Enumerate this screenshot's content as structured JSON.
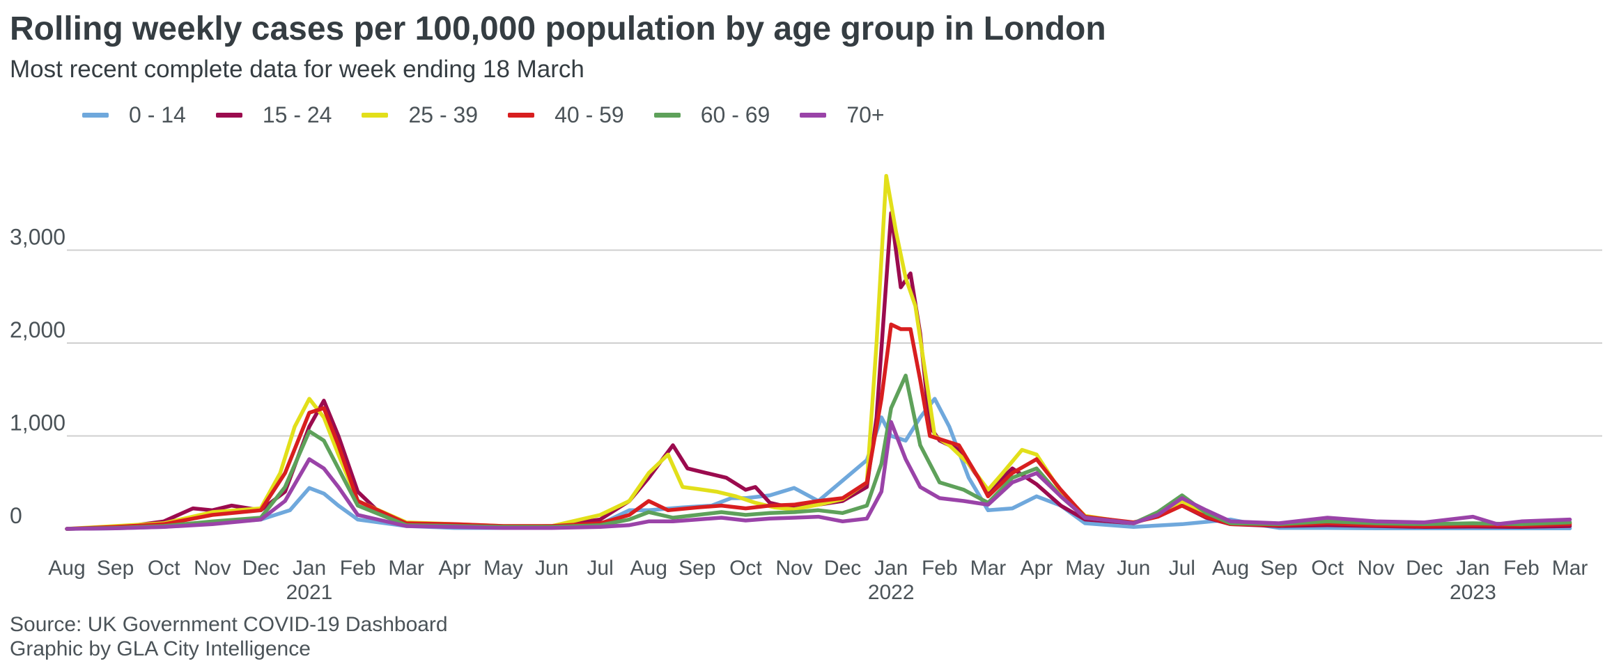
{
  "chart_data": {
    "type": "line",
    "title": "Rolling weekly cases per 100,000 population by age group in London",
    "subtitle": "Most recent complete data for week ending 18 March",
    "xlabel": "",
    "ylabel": "",
    "ylim": [
      0,
      4200
    ],
    "yticks": [
      0,
      1000,
      2000,
      3000
    ],
    "ytick_labels": [
      "0",
      "1,000",
      "2,000",
      "3,000"
    ],
    "grid": "horizontal",
    "legend_position": "top-left",
    "x_range": [
      2020.5,
      2023.2
    ],
    "x_unit": "months starting August 2020",
    "month_ticks": [
      "Aug",
      "Sep",
      "Oct",
      "Nov",
      "Dec",
      "Jan",
      "Feb",
      "Mar",
      "Apr",
      "May",
      "Jun",
      "Jul",
      "Aug",
      "Sep",
      "Oct",
      "Nov",
      "Dec",
      "Jan",
      "Feb",
      "Mar",
      "Apr",
      "May",
      "Jun",
      "Jul",
      "Aug",
      "Sep",
      "Oct",
      "Nov",
      "Dec",
      "Jan",
      "Feb",
      "Mar"
    ],
    "year_labels": [
      {
        "label": "2021",
        "month_index": 5
      },
      {
        "label": "2022",
        "month_index": 17
      },
      {
        "label": "2023",
        "month_index": 29
      }
    ],
    "series": [
      {
        "name": "0 - 14",
        "color": "#6fa8dc",
        "points": [
          [
            0,
            0
          ],
          [
            1,
            5
          ],
          [
            2,
            20
          ],
          [
            3,
            60
          ],
          [
            4,
            100
          ],
          [
            4.6,
            200
          ],
          [
            5,
            440
          ],
          [
            5.3,
            380
          ],
          [
            5.6,
            250
          ],
          [
            6,
            100
          ],
          [
            7,
            30
          ],
          [
            8,
            10
          ],
          [
            9,
            10
          ],
          [
            10,
            15
          ],
          [
            11,
            50
          ],
          [
            11.6,
            200
          ],
          [
            12,
            200
          ],
          [
            12.7,
            230
          ],
          [
            13.3,
            250
          ],
          [
            13.7,
            330
          ],
          [
            14,
            330
          ],
          [
            14.5,
            360
          ],
          [
            15,
            440
          ],
          [
            15.5,
            300
          ],
          [
            16,
            520
          ],
          [
            16.5,
            740
          ],
          [
            16.8,
            1200
          ],
          [
            17,
            1000
          ],
          [
            17.3,
            950
          ],
          [
            17.6,
            1200
          ],
          [
            17.9,
            1400
          ],
          [
            18.2,
            1100
          ],
          [
            18.6,
            550
          ],
          [
            19,
            200
          ],
          [
            19.5,
            220
          ],
          [
            20,
            350
          ],
          [
            20.5,
            250
          ],
          [
            21,
            60
          ],
          [
            22,
            20
          ],
          [
            23,
            50
          ],
          [
            24,
            100
          ],
          [
            24.5,
            50
          ],
          [
            25,
            10
          ],
          [
            26,
            10
          ],
          [
            27,
            5
          ],
          [
            28,
            5
          ],
          [
            29,
            5
          ],
          [
            30,
            5
          ],
          [
            31,
            5
          ]
        ]
      },
      {
        "name": "15 - 24",
        "color": "#9b0b4e",
        "points": [
          [
            0,
            0
          ],
          [
            1,
            10
          ],
          [
            2,
            80
          ],
          [
            2.6,
            220
          ],
          [
            3,
            200
          ],
          [
            3.4,
            250
          ],
          [
            4,
            200
          ],
          [
            4.5,
            400
          ],
          [
            5,
            1100
          ],
          [
            5.3,
            1380
          ],
          [
            5.6,
            1000
          ],
          [
            6,
            400
          ],
          [
            6.5,
            150
          ],
          [
            7,
            50
          ],
          [
            8,
            30
          ],
          [
            9,
            20
          ],
          [
            10,
            30
          ],
          [
            11,
            100
          ],
          [
            11.6,
            300
          ],
          [
            12,
            550
          ],
          [
            12.5,
            900
          ],
          [
            12.8,
            650
          ],
          [
            13.2,
            600
          ],
          [
            13.6,
            550
          ],
          [
            14,
            420
          ],
          [
            14.2,
            450
          ],
          [
            14.5,
            280
          ],
          [
            15,
            220
          ],
          [
            15.5,
            260
          ],
          [
            16,
            300
          ],
          [
            16.5,
            450
          ],
          [
            16.7,
            1200
          ],
          [
            17,
            3400
          ],
          [
            17.2,
            2600
          ],
          [
            17.4,
            2750
          ],
          [
            17.6,
            2100
          ],
          [
            17.8,
            1100
          ],
          [
            18,
            950
          ],
          [
            18.4,
            850
          ],
          [
            18.8,
            550
          ],
          [
            19,
            400
          ],
          [
            19.5,
            650
          ],
          [
            20,
            480
          ],
          [
            20.5,
            250
          ],
          [
            21,
            100
          ],
          [
            22,
            60
          ],
          [
            22.5,
            150
          ],
          [
            23,
            250
          ],
          [
            23.5,
            120
          ],
          [
            24,
            50
          ],
          [
            25,
            30
          ],
          [
            26,
            40
          ],
          [
            27,
            30
          ],
          [
            28,
            20
          ],
          [
            29,
            25
          ],
          [
            30,
            20
          ],
          [
            31,
            30
          ]
        ]
      },
      {
        "name": "25 - 39",
        "color": "#e2df1a",
        "points": [
          [
            0,
            0
          ],
          [
            1,
            30
          ],
          [
            2,
            60
          ],
          [
            3,
            180
          ],
          [
            4,
            220
          ],
          [
            4.4,
            600
          ],
          [
            4.7,
            1100
          ],
          [
            5,
            1400
          ],
          [
            5.3,
            1200
          ],
          [
            5.6,
            800
          ],
          [
            6,
            300
          ],
          [
            7,
            70
          ],
          [
            8,
            50
          ],
          [
            9,
            30
          ],
          [
            10,
            30
          ],
          [
            11,
            150
          ],
          [
            11.6,
            300
          ],
          [
            12,
            600
          ],
          [
            12.4,
            800
          ],
          [
            12.7,
            450
          ],
          [
            13,
            430
          ],
          [
            13.4,
            400
          ],
          [
            13.8,
            350
          ],
          [
            14.2,
            280
          ],
          [
            14.6,
            230
          ],
          [
            15,
            210
          ],
          [
            15.5,
            260
          ],
          [
            16,
            320
          ],
          [
            16.5,
            500
          ],
          [
            16.7,
            2000
          ],
          [
            16.9,
            3800
          ],
          [
            17.1,
            3200
          ],
          [
            17.3,
            2700
          ],
          [
            17.5,
            2400
          ],
          [
            17.7,
            1700
          ],
          [
            17.9,
            1000
          ],
          [
            18.2,
            900
          ],
          [
            18.6,
            700
          ],
          [
            19,
            420
          ],
          [
            19.3,
            600
          ],
          [
            19.7,
            850
          ],
          [
            20,
            800
          ],
          [
            20.5,
            400
          ],
          [
            21,
            140
          ],
          [
            22,
            60
          ],
          [
            22.5,
            150
          ],
          [
            23,
            300
          ],
          [
            23.5,
            150
          ],
          [
            24,
            60
          ],
          [
            25,
            40
          ],
          [
            26,
            70
          ],
          [
            27,
            50
          ],
          [
            28,
            40
          ],
          [
            29,
            50
          ],
          [
            30,
            40
          ],
          [
            31,
            60
          ]
        ]
      },
      {
        "name": "40 - 59",
        "color": "#d81e1f",
        "points": [
          [
            0,
            0
          ],
          [
            1,
            20
          ],
          [
            2,
            50
          ],
          [
            3,
            150
          ],
          [
            4,
            200
          ],
          [
            4.5,
            600
          ],
          [
            5,
            1250
          ],
          [
            5.3,
            1300
          ],
          [
            5.6,
            900
          ],
          [
            6,
            300
          ],
          [
            7,
            60
          ],
          [
            8,
            50
          ],
          [
            9,
            30
          ],
          [
            10,
            30
          ],
          [
            11,
            60
          ],
          [
            11.6,
            150
          ],
          [
            12,
            300
          ],
          [
            12.4,
            200
          ],
          [
            13,
            230
          ],
          [
            13.5,
            250
          ],
          [
            14,
            220
          ],
          [
            14.5,
            250
          ],
          [
            15,
            260
          ],
          [
            15.5,
            300
          ],
          [
            16,
            330
          ],
          [
            16.5,
            500
          ],
          [
            16.8,
            1400
          ],
          [
            17,
            2200
          ],
          [
            17.2,
            2150
          ],
          [
            17.4,
            2150
          ],
          [
            17.6,
            1600
          ],
          [
            17.8,
            1000
          ],
          [
            18.1,
            950
          ],
          [
            18.4,
            900
          ],
          [
            18.8,
            550
          ],
          [
            19,
            350
          ],
          [
            19.5,
            600
          ],
          [
            20,
            750
          ],
          [
            20.5,
            420
          ],
          [
            21,
            130
          ],
          [
            22,
            70
          ],
          [
            22.5,
            130
          ],
          [
            23,
            250
          ],
          [
            23.5,
            130
          ],
          [
            24,
            50
          ],
          [
            25,
            40
          ],
          [
            26,
            60
          ],
          [
            27,
            40
          ],
          [
            28,
            30
          ],
          [
            29,
            40
          ],
          [
            30,
            35
          ],
          [
            31,
            50
          ]
        ]
      },
      {
        "name": "60 - 69",
        "color": "#5ea15a",
        "points": [
          [
            0,
            0
          ],
          [
            1,
            10
          ],
          [
            2,
            30
          ],
          [
            3,
            80
          ],
          [
            4,
            120
          ],
          [
            4.5,
            450
          ],
          [
            5,
            1050
          ],
          [
            5.3,
            950
          ],
          [
            5.6,
            650
          ],
          [
            6,
            250
          ],
          [
            7,
            40
          ],
          [
            8,
            30
          ],
          [
            9,
            20
          ],
          [
            10,
            20
          ],
          [
            11,
            40
          ],
          [
            11.6,
            100
          ],
          [
            12,
            180
          ],
          [
            12.5,
            120
          ],
          [
            13,
            150
          ],
          [
            13.5,
            180
          ],
          [
            14,
            150
          ],
          [
            14.5,
            170
          ],
          [
            15,
            180
          ],
          [
            15.5,
            200
          ],
          [
            16,
            170
          ],
          [
            16.5,
            250
          ],
          [
            16.8,
            700
          ],
          [
            17,
            1300
          ],
          [
            17.3,
            1650
          ],
          [
            17.6,
            900
          ],
          [
            18,
            500
          ],
          [
            18.5,
            420
          ],
          [
            19,
            280
          ],
          [
            19.5,
            550
          ],
          [
            20,
            650
          ],
          [
            20.5,
            350
          ],
          [
            21,
            120
          ],
          [
            22,
            60
          ],
          [
            22.5,
            180
          ],
          [
            23,
            360
          ],
          [
            23.5,
            170
          ],
          [
            24,
            60
          ],
          [
            25,
            50
          ],
          [
            26,
            80
          ],
          [
            27,
            60
          ],
          [
            28,
            50
          ],
          [
            29,
            60
          ],
          [
            30,
            50
          ],
          [
            31,
            70
          ]
        ]
      },
      {
        "name": "70+",
        "color": "#9a43a8",
        "points": [
          [
            0,
            0
          ],
          [
            1,
            5
          ],
          [
            2,
            20
          ],
          [
            3,
            50
          ],
          [
            4,
            100
          ],
          [
            4.5,
            300
          ],
          [
            5,
            750
          ],
          [
            5.3,
            650
          ],
          [
            5.6,
            450
          ],
          [
            6,
            150
          ],
          [
            7,
            30
          ],
          [
            8,
            20
          ],
          [
            9,
            10
          ],
          [
            10,
            10
          ],
          [
            11,
            20
          ],
          [
            11.6,
            40
          ],
          [
            12,
            80
          ],
          [
            12.5,
            80
          ],
          [
            13,
            100
          ],
          [
            13.5,
            120
          ],
          [
            14,
            90
          ],
          [
            14.5,
            110
          ],
          [
            15,
            120
          ],
          [
            15.5,
            130
          ],
          [
            16,
            80
          ],
          [
            16.5,
            110
          ],
          [
            16.8,
            400
          ],
          [
            17,
            1150
          ],
          [
            17.3,
            750
          ],
          [
            17.6,
            450
          ],
          [
            18,
            330
          ],
          [
            18.5,
            300
          ],
          [
            19,
            260
          ],
          [
            19.5,
            500
          ],
          [
            20,
            600
          ],
          [
            20.5,
            350
          ],
          [
            21,
            120
          ],
          [
            22,
            60
          ],
          [
            22.5,
            150
          ],
          [
            23,
            330
          ],
          [
            23.5,
            200
          ],
          [
            24,
            80
          ],
          [
            25,
            60
          ],
          [
            26,
            120
          ],
          [
            27,
            80
          ],
          [
            28,
            70
          ],
          [
            29,
            130
          ],
          [
            29.5,
            50
          ],
          [
            30,
            80
          ],
          [
            31,
            100
          ]
        ]
      }
    ]
  },
  "source_line1": "Source: UK Government COVID-19 Dashboard",
  "source_line2": "Graphic by GLA City Intelligence"
}
